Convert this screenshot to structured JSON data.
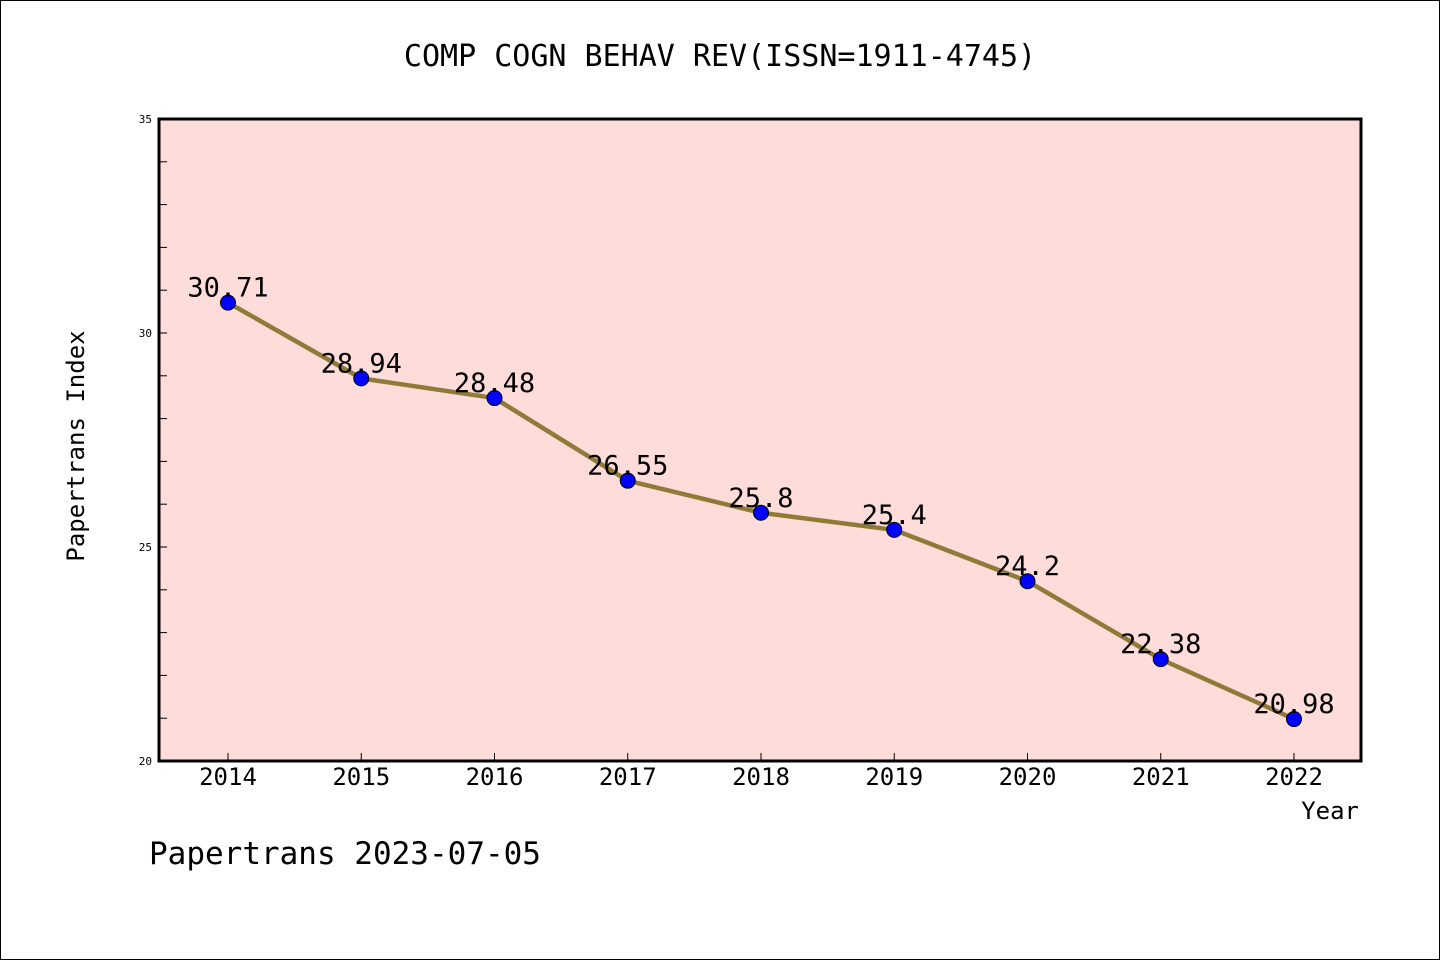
{
  "colors": {
    "plot_background": "#fddcda",
    "line": "#8f7a38",
    "marker": "#0000ff",
    "frame": "#000000"
  },
  "footer": "Papertrans 2023-07-05",
  "chart_data": {
    "type": "line",
    "title": "COMP COGN BEHAV REV(ISSN=1911-4745)",
    "xlabel": "Year",
    "ylabel": "Papertrans Index",
    "categories": [
      "2014",
      "2015",
      "2016",
      "2017",
      "2018",
      "2019",
      "2020",
      "2021",
      "2022"
    ],
    "values": [
      30.71,
      28.94,
      28.48,
      26.55,
      25.8,
      25.4,
      24.2,
      22.38,
      20.98
    ],
    "data_labels": [
      "30.71",
      "28.94",
      "28.48",
      "26.55",
      "25.8",
      "25.4",
      "24.2",
      "22.38",
      "20.98"
    ],
    "ylim": [
      20,
      35
    ],
    "yticks": [
      "20",
      "25",
      "30",
      "35"
    ],
    "grid": false,
    "legend": "none"
  }
}
